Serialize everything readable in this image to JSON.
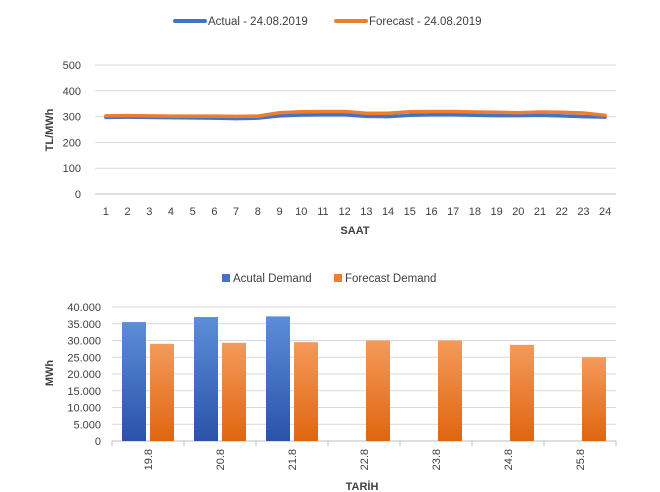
{
  "chart_data": [
    {
      "type": "line",
      "title": "",
      "xlabel": "SAAT",
      "ylabel": "TL/MWh",
      "categories": [
        "1",
        "2",
        "3",
        "4",
        "5",
        "6",
        "7",
        "8",
        "9",
        "10",
        "11",
        "12",
        "13",
        "14",
        "15",
        "16",
        "17",
        "18",
        "19",
        "20",
        "21",
        "22",
        "23",
        "24"
      ],
      "ylim": [
        0,
        500
      ],
      "yticks": [
        "0",
        "100",
        "200",
        "300",
        "400",
        "500"
      ],
      "grid": true,
      "legend_position": "top",
      "series": [
        {
          "name": "Actual - 24.08.2019",
          "color": "#4472C4",
          "values": [
            297,
            298,
            297,
            296,
            295,
            294,
            292,
            294,
            303,
            306,
            307,
            307,
            301,
            300,
            305,
            307,
            307,
            305,
            304,
            304,
            305,
            303,
            300,
            298
          ]
        },
        {
          "name": "Forecast - 24.08.2019",
          "color": "#ED7D31",
          "values": [
            303,
            304,
            303,
            302,
            302,
            302,
            301,
            302,
            315,
            319,
            320,
            320,
            313,
            313,
            319,
            320,
            320,
            318,
            317,
            315,
            318,
            317,
            314,
            305
          ]
        }
      ]
    },
    {
      "type": "bar",
      "title": "",
      "xlabel": "TARİH",
      "ylabel": "MWh",
      "categories": [
        "19.8",
        "20.8",
        "21.8",
        "22.8",
        "23.8",
        "24.8",
        "25.8"
      ],
      "ylim": [
        0,
        40000
      ],
      "yticks": [
        "0",
        "5.000",
        "10.000",
        "15.000",
        "20.000",
        "25.000",
        "30.000",
        "35.000",
        "40.000"
      ],
      "grid": true,
      "legend_position": "top",
      "series": [
        {
          "name": "Acutal Demand",
          "color": "#4472C4",
          "values": [
            35500,
            37000,
            37200,
            null,
            null,
            null,
            null
          ]
        },
        {
          "name": "Forecast Demand",
          "color": "#ED7D31",
          "values": [
            29000,
            29300,
            29500,
            30000,
            30000,
            28700,
            25000
          ]
        }
      ]
    }
  ]
}
